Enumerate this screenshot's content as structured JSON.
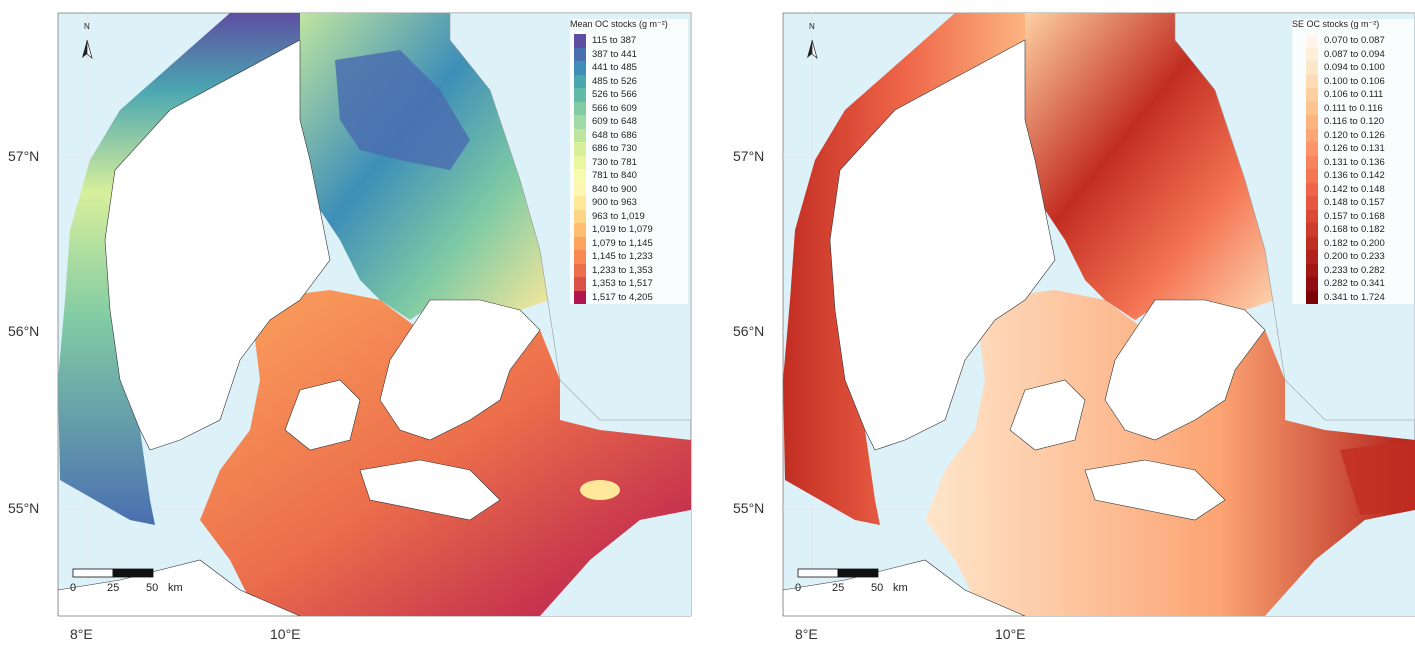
{
  "panels": {
    "left": {
      "legend": {
        "title": "Mean OC stocks (g m⁻²)",
        "items": [
          {
            "label": "115 to 387",
            "color": "#5E4FA2"
          },
          {
            "label": "387 to 441",
            "color": "#4A6FB0"
          },
          {
            "label": "441 to 485",
            "color": "#3E8EB8"
          },
          {
            "label": "485 to 526",
            "color": "#4AA6B1"
          },
          {
            "label": "526 to 566",
            "color": "#62BBA7"
          },
          {
            "label": "566 to 609",
            "color": "#80CBA4"
          },
          {
            "label": "609 to 648",
            "color": "#A0D9A3"
          },
          {
            "label": "648 to 686",
            "color": "#BEE5A0"
          },
          {
            "label": "686 to 730",
            "color": "#D8EF9B"
          },
          {
            "label": "730 to 781",
            "color": "#EBF7A0"
          },
          {
            "label": "781 to 840",
            "color": "#F6FBAE"
          },
          {
            "label": "840 to 900",
            "color": "#FEF6B1"
          },
          {
            "label": "900 to 963",
            "color": "#FEE89A"
          },
          {
            "label": "963 to 1,019",
            "color": "#FDD585"
          },
          {
            "label": "1,019 to 1,079",
            "color": "#FDBE6F"
          },
          {
            "label": "1,079 to 1,145",
            "color": "#FCA45E"
          },
          {
            "label": "1,145 to 1,233",
            "color": "#F68A52"
          },
          {
            "label": "1,233 to 1,353",
            "color": "#EC6E4B"
          },
          {
            "label": "1,353 to 1,517",
            "color": "#DA5148"
          },
          {
            "label": "1,517 to 4,205",
            "color": "#B3164F"
          }
        ]
      },
      "lat_labels": [
        "57°N",
        "56°N",
        "55°N"
      ],
      "lon_labels": [
        "8°E",
        "10°E"
      ],
      "scale_labels": [
        "0",
        "25",
        "50",
        "km"
      ],
      "north_label": "N"
    },
    "right": {
      "legend": {
        "title": "SE OC stocks (g m⁻²)",
        "items": [
          {
            "label": "0.070 to 0.087",
            "color": "#FFF5EB"
          },
          {
            "label": "0.087 to 0.094",
            "color": "#FEEEDB"
          },
          {
            "label": "0.094 to 0.100",
            "color": "#FEE6CB"
          },
          {
            "label": "0.100 to 0.106",
            "color": "#FDDCB7"
          },
          {
            "label": "0.106 to 0.111",
            "color": "#FDD0A2"
          },
          {
            "label": "0.111 to 0.116",
            "color": "#FDC38F"
          },
          {
            "label": "0.116 to 0.120",
            "color": "#FCB47F"
          },
          {
            "label": "0.120 to 0.126",
            "color": "#FCA473"
          },
          {
            "label": "0.126 to 0.131",
            "color": "#FB9468"
          },
          {
            "label": "0.131 to 0.136",
            "color": "#F8845D"
          },
          {
            "label": "0.136 to 0.142",
            "color": "#F47453"
          },
          {
            "label": "0.142 to 0.148",
            "color": "#EE6549"
          },
          {
            "label": "0.148 to 0.157",
            "color": "#E65640"
          },
          {
            "label": "0.157 to 0.168",
            "color": "#DC4836"
          },
          {
            "label": "0.168 to 0.182",
            "color": "#D03A2C"
          },
          {
            "label": "0.182 to 0.200",
            "color": "#C22D22"
          },
          {
            "label": "0.200 to 0.233",
            "color": "#B2211B"
          },
          {
            "label": "0.233 to 0.282",
            "color": "#A21614"
          },
          {
            "label": "0.282 to 0.341",
            "color": "#900C0E"
          },
          {
            "label": "0.341 to 1.724",
            "color": "#7A0308"
          }
        ]
      },
      "lat_labels": [
        "57°N",
        "56°N",
        "55°N"
      ],
      "lon_labels": [
        "8°E",
        "10°E"
      ],
      "scale_labels": [
        "0",
        "25",
        "50",
        "km"
      ],
      "north_label": "N"
    }
  },
  "colors": {
    "sea_background": "#DDF1F9",
    "land": "#FFFFFF",
    "grid": "#E6E6E6"
  }
}
